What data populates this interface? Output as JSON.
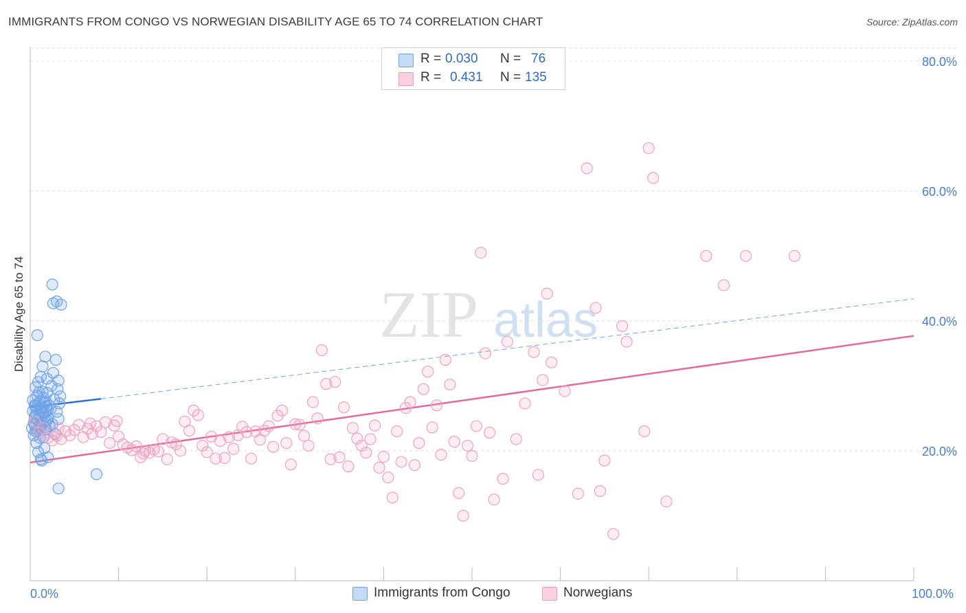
{
  "title": "IMMIGRANTS FROM CONGO VS NORWEGIAN DISABILITY AGE 65 TO 74 CORRELATION CHART",
  "source": "Source: ZipAtlas.com",
  "watermark": {
    "zip": "ZIP",
    "atlas": "atlas"
  },
  "legend": {
    "rows": [
      {
        "r_label": "R =",
        "r_value": "0.030",
        "n_label": "N =",
        "n_value": "76",
        "color": "#6fa3e6"
      },
      {
        "r_label": "R =",
        "r_value": "0.431",
        "n_label": "N =",
        "n_value": "135",
        "color": "#f09ab7"
      }
    ]
  },
  "bottom_legend": [
    {
      "label": "Immigrants from Congo",
      "color": "#6fa3e6"
    },
    {
      "label": "Norwegians",
      "color": "#f09ab7"
    }
  ],
  "chart_data": {
    "type": "scatter",
    "title": "IMMIGRANTS FROM CONGO VS NORWEGIAN DISABILITY AGE 65 TO 74 CORRELATION CHART",
    "xlabel": "",
    "ylabel": "Disability Age 65 to 74",
    "xlim": [
      0,
      100
    ],
    "ylim": [
      0,
      82
    ],
    "x_tick_labels": [
      "0.0%",
      "100.0%"
    ],
    "y_ticks": [
      20,
      40,
      60,
      80
    ],
    "y_tick_labels": [
      "20.0%",
      "40.0%",
      "60.0%",
      "80.0%"
    ],
    "grid": true,
    "legend_position": "top-center",
    "series": [
      {
        "name": "Immigrants from Congo",
        "color": "#6fa3e6",
        "trend": {
          "x": [
            0,
            8
          ],
          "y": [
            26.7,
            28.0
          ],
          "dashed_extension_to": [
            100,
            43.4
          ]
        },
        "points": [
          [
            0.2,
            23.5
          ],
          [
            0.3,
            26.1
          ],
          [
            0.4,
            24.3
          ],
          [
            0.4,
            22.4
          ],
          [
            0.5,
            27.0
          ],
          [
            0.5,
            25.2
          ],
          [
            0.6,
            29.8
          ],
          [
            0.6,
            23.0
          ],
          [
            0.7,
            21.2
          ],
          [
            0.7,
            26.5
          ],
          [
            0.8,
            28.5
          ],
          [
            0.8,
            24.8
          ],
          [
            0.9,
            19.8
          ],
          [
            0.9,
            30.6
          ],
          [
            1.0,
            22.8
          ],
          [
            1.0,
            25.5
          ],
          [
            1.1,
            27.6
          ],
          [
            1.1,
            23.9
          ],
          [
            1.2,
            31.4
          ],
          [
            1.2,
            26.2
          ],
          [
            1.3,
            18.5
          ],
          [
            1.3,
            24.0
          ],
          [
            1.4,
            33.0
          ],
          [
            1.4,
            29.1
          ],
          [
            1.5,
            25.8
          ],
          [
            1.5,
            22.1
          ],
          [
            1.6,
            27.4
          ],
          [
            1.6,
            20.4
          ],
          [
            1.7,
            34.5
          ],
          [
            1.7,
            24.6
          ],
          [
            1.8,
            26.8
          ],
          [
            1.8,
            23.3
          ],
          [
            1.9,
            28.9
          ],
          [
            1.9,
            31.1
          ],
          [
            2.0,
            25.0
          ],
          [
            2.0,
            19.0
          ],
          [
            2.1,
            27.0
          ],
          [
            2.2,
            23.8
          ],
          [
            2.3,
            26.4
          ],
          [
            2.4,
            30.0
          ],
          [
            2.5,
            24.1
          ],
          [
            2.6,
            32.0
          ],
          [
            2.7,
            27.9
          ],
          [
            2.8,
            22.6
          ],
          [
            2.9,
            34.0
          ],
          [
            3.0,
            26.0
          ],
          [
            3.1,
            29.5
          ],
          [
            3.2,
            24.9
          ],
          [
            3.3,
            27.3
          ],
          [
            3.4,
            28.4
          ],
          [
            0.3,
            27.8
          ],
          [
            0.5,
            24.0
          ],
          [
            0.6,
            26.9
          ],
          [
            0.7,
            25.6
          ],
          [
            0.8,
            23.1
          ],
          [
            0.9,
            27.2
          ],
          [
            1.0,
            29.0
          ],
          [
            1.1,
            22.0
          ],
          [
            1.2,
            25.1
          ],
          [
            1.3,
            26.6
          ],
          [
            1.4,
            24.4
          ],
          [
            1.5,
            28.2
          ],
          [
            1.6,
            23.6
          ],
          [
            1.7,
            25.9
          ],
          [
            1.8,
            27.5
          ],
          [
            1.9,
            24.7
          ],
          [
            2.0,
            26.3
          ],
          [
            0.8,
            37.8
          ],
          [
            1.2,
            18.7
          ],
          [
            2.5,
            45.6
          ],
          [
            2.6,
            42.7
          ],
          [
            3.0,
            43.0
          ],
          [
            3.5,
            42.5
          ],
          [
            3.2,
            14.2
          ],
          [
            7.5,
            16.4
          ],
          [
            3.2,
            30.8
          ]
        ]
      },
      {
        "name": "Norwegians",
        "color": "#f09ab7",
        "trend": {
          "x": [
            0,
            100
          ],
          "y": [
            18.2,
            37.7
          ]
        },
        "points": [
          [
            0.5,
            24.5
          ],
          [
            1.0,
            22.8
          ],
          [
            1.5,
            23.5
          ],
          [
            2.0,
            22.0
          ],
          [
            2.5,
            21.6
          ],
          [
            3.0,
            22.3
          ],
          [
            3.5,
            21.8
          ],
          [
            4.0,
            23.0
          ],
          [
            4.5,
            22.4
          ],
          [
            5.0,
            23.2
          ],
          [
            5.5,
            24.0
          ],
          [
            6.0,
            22.1
          ],
          [
            6.5,
            23.4
          ],
          [
            7.0,
            22.6
          ],
          [
            7.5,
            23.8
          ],
          [
            8.0,
            22.9
          ],
          [
            8.5,
            24.4
          ],
          [
            9.0,
            21.2
          ],
          [
            9.5,
            23.9
          ],
          [
            10.0,
            22.2
          ],
          [
            10.5,
            21.0
          ],
          [
            11.0,
            20.5
          ],
          [
            11.5,
            20.1
          ],
          [
            12.0,
            20.7
          ],
          [
            12.5,
            19.0
          ],
          [
            13.0,
            20.0
          ],
          [
            13.5,
            19.7
          ],
          [
            14.0,
            20.2
          ],
          [
            14.5,
            19.9
          ],
          [
            15.0,
            21.8
          ],
          [
            15.5,
            18.7
          ],
          [
            16.0,
            21.3
          ],
          [
            16.5,
            21.0
          ],
          [
            17.0,
            20.0
          ],
          [
            17.5,
            24.5
          ],
          [
            18.0,
            23.1
          ],
          [
            18.5,
            26.2
          ],
          [
            19.0,
            25.5
          ],
          [
            19.5,
            20.8
          ],
          [
            20.0,
            19.8
          ],
          [
            20.5,
            22.2
          ],
          [
            21.0,
            18.8
          ],
          [
            21.5,
            21.5
          ],
          [
            22.0,
            18.9
          ],
          [
            22.5,
            22.1
          ],
          [
            23.0,
            20.3
          ],
          [
            23.5,
            22.4
          ],
          [
            24.0,
            23.7
          ],
          [
            24.5,
            22.9
          ],
          [
            25.0,
            18.8
          ],
          [
            25.5,
            23.0
          ],
          [
            26.0,
            21.7
          ],
          [
            26.5,
            23.1
          ],
          [
            27.0,
            23.8
          ],
          [
            27.5,
            20.6
          ],
          [
            28.0,
            25.4
          ],
          [
            28.5,
            26.2
          ],
          [
            29.0,
            21.2
          ],
          [
            29.5,
            17.9
          ],
          [
            30.0,
            24.1
          ],
          [
            30.5,
            24.0
          ],
          [
            31.0,
            22.3
          ],
          [
            31.5,
            20.8
          ],
          [
            32.0,
            27.5
          ],
          [
            32.5,
            25.0
          ],
          [
            33.0,
            35.5
          ],
          [
            33.5,
            30.3
          ],
          [
            34.0,
            18.7
          ],
          [
            34.5,
            30.6
          ],
          [
            35.0,
            19.0
          ],
          [
            35.5,
            26.7
          ],
          [
            36.0,
            17.6
          ],
          [
            36.5,
            23.5
          ],
          [
            37.0,
            21.9
          ],
          [
            37.5,
            20.8
          ],
          [
            38.0,
            19.7
          ],
          [
            38.5,
            21.8
          ],
          [
            39.0,
            23.9
          ],
          [
            39.5,
            17.4
          ],
          [
            40.0,
            19.1
          ],
          [
            40.5,
            15.9
          ],
          [
            41.0,
            12.8
          ],
          [
            41.5,
            23.0
          ],
          [
            42.0,
            18.3
          ],
          [
            42.5,
            26.6
          ],
          [
            43.0,
            27.5
          ],
          [
            43.5,
            17.8
          ],
          [
            44.0,
            21.2
          ],
          [
            44.5,
            29.5
          ],
          [
            45.0,
            32.2
          ],
          [
            45.5,
            23.6
          ],
          [
            46.0,
            27.0
          ],
          [
            46.5,
            19.4
          ],
          [
            47.0,
            34.0
          ],
          [
            47.5,
            30.2
          ],
          [
            48.0,
            21.4
          ],
          [
            48.5,
            13.5
          ],
          [
            49.0,
            10.0
          ],
          [
            49.5,
            20.8
          ],
          [
            50.0,
            19.2
          ],
          [
            50.5,
            23.8
          ],
          [
            51.0,
            50.5
          ],
          [
            51.5,
            35.0
          ],
          [
            52.0,
            22.8
          ],
          [
            52.5,
            12.5
          ],
          [
            53.5,
            15.7
          ],
          [
            54.0,
            36.8
          ],
          [
            55.0,
            21.8
          ],
          [
            56.0,
            27.3
          ],
          [
            57.0,
            35.2
          ],
          [
            57.5,
            16.3
          ],
          [
            58.0,
            30.9
          ],
          [
            58.5,
            44.2
          ],
          [
            59.0,
            33.6
          ],
          [
            60.5,
            29.2
          ],
          [
            62.0,
            13.4
          ],
          [
            63.0,
            63.5
          ],
          [
            64.0,
            42.0
          ],
          [
            64.5,
            13.8
          ],
          [
            65.0,
            18.5
          ],
          [
            66.0,
            7.2
          ],
          [
            67.0,
            39.2
          ],
          [
            67.5,
            36.8
          ],
          [
            69.5,
            23.0
          ],
          [
            70.0,
            66.6
          ],
          [
            70.5,
            62.0
          ],
          [
            72.0,
            12.2
          ],
          [
            76.5,
            50.0
          ],
          [
            78.5,
            45.5
          ],
          [
            81.0,
            50.0
          ],
          [
            86.5,
            50.0
          ],
          [
            3.2,
            23.5
          ],
          [
            6.8,
            24.2
          ],
          [
            9.8,
            24.6
          ],
          [
            12.8,
            19.6
          ]
        ]
      }
    ]
  }
}
